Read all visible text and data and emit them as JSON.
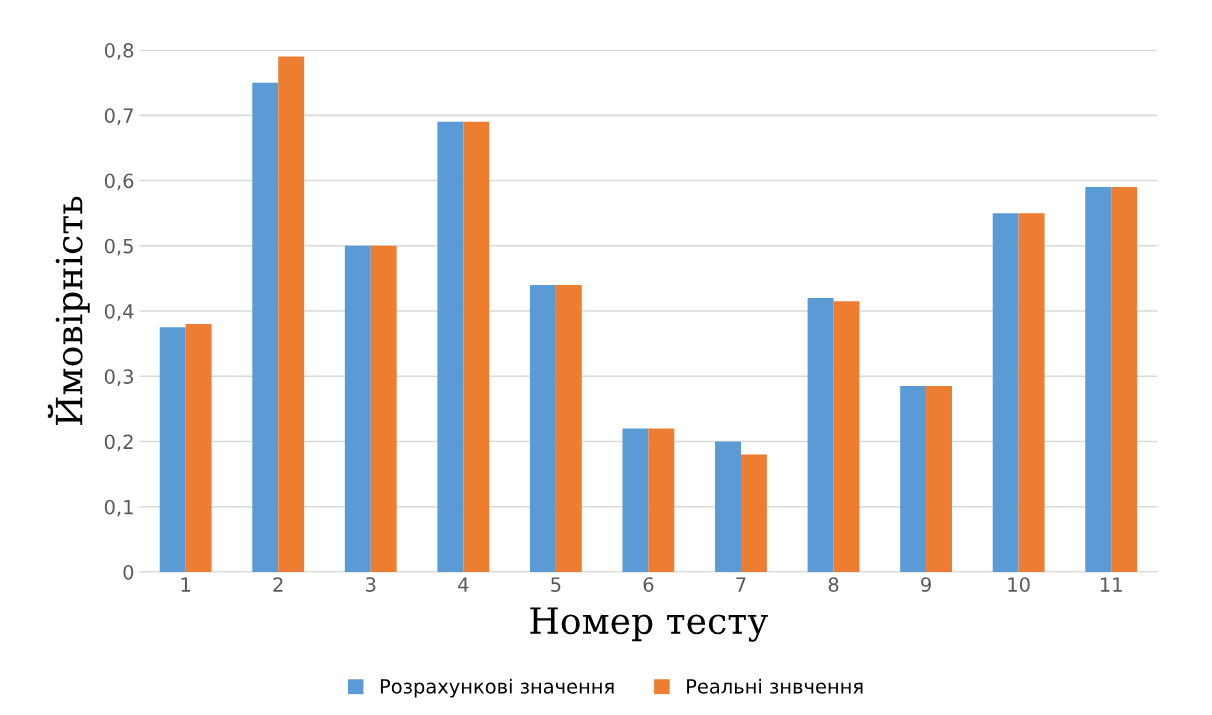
{
  "chart_data": {
    "type": "bar",
    "xlabel": "Номер тесту",
    "ylabel": "Ймовірність",
    "categories": [
      "1",
      "2",
      "3",
      "4",
      "5",
      "6",
      "7",
      "8",
      "9",
      "10",
      "11"
    ],
    "series": [
      {
        "name": "Розрахункові значення",
        "color": "#5b9bd5",
        "values": [
          0.375,
          0.75,
          0.5,
          0.69,
          0.44,
          0.22,
          0.2,
          0.42,
          0.285,
          0.55,
          0.59
        ]
      },
      {
        "name": "Реальні знвчення",
        "color": "#ed7d31",
        "values": [
          0.38,
          0.79,
          0.5,
          0.69,
          0.44,
          0.22,
          0.18,
          0.415,
          0.285,
          0.55,
          0.59
        ]
      }
    ],
    "ylim": [
      0,
      0.8
    ],
    "yticks": [
      0,
      {
        "value": 0.1,
        "label": "0,1"
      },
      {
        "value": 0.2,
        "label": "0,2"
      },
      {
        "value": 0.3,
        "label": "0,3"
      },
      {
        "value": 0.4,
        "label": "0,4"
      },
      {
        "value": 0.5,
        "label": "0,5"
      },
      {
        "value": 0.6,
        "label": "0,6"
      },
      {
        "value": 0.7,
        "label": "0,7"
      },
      {
        "value": 0.8,
        "label": "0,8"
      }
    ],
    "grid": "y",
    "legend": "bottom"
  }
}
